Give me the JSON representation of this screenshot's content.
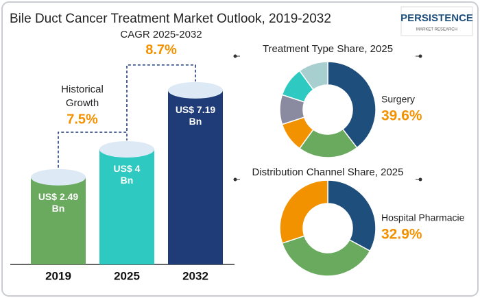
{
  "logo": {
    "name": "PERSISTENCE",
    "tagline": "MARKET RESEARCH"
  },
  "chart_data": [
    {
      "type": "bar",
      "title": "Bile Duct Cancer Treatment Market Outlook, 2019-2032",
      "categories": [
        "2019",
        "2025",
        "2032"
      ],
      "values": [
        2.49,
        4,
        7.19
      ],
      "value_labels": [
        "US$ 2.49 Bn",
        "US$ 4 Bn",
        "US$ 7.19 Bn"
      ],
      "colors": [
        "#6aaa5e",
        "#2ec9c0",
        "#1f3c78"
      ],
      "annotations": [
        {
          "text": "Historical Growth",
          "value": "7.5%"
        },
        {
          "text": "CAGR 2025-2032",
          "value": "8.7%"
        }
      ]
    },
    {
      "type": "donut",
      "title": "Treatment Type Share, 2025",
      "categories": [
        "Surgery",
        null,
        null,
        null,
        null,
        null
      ],
      "values": [
        39.6,
        20.4,
        10,
        10,
        10,
        10
      ],
      "value_labels": [
        "39.6%",
        null,
        null,
        null,
        null,
        null
      ],
      "colors": [
        "#1d4e7c",
        "#6aaa5e",
        "#f39200",
        "#8a8aa0",
        "#2ec9c0",
        "#a8cfd0"
      ]
    },
    {
      "type": "donut",
      "title": "Distribution Channel Share, 2025",
      "categories": [
        "Hospital Pharmacie",
        null,
        null
      ],
      "values": [
        32.9,
        37,
        30.1
      ],
      "value_labels": [
        "32.9%",
        null,
        null
      ],
      "colors": [
        "#1d4e7c",
        "#6aaa5e",
        "#f39200"
      ]
    }
  ]
}
